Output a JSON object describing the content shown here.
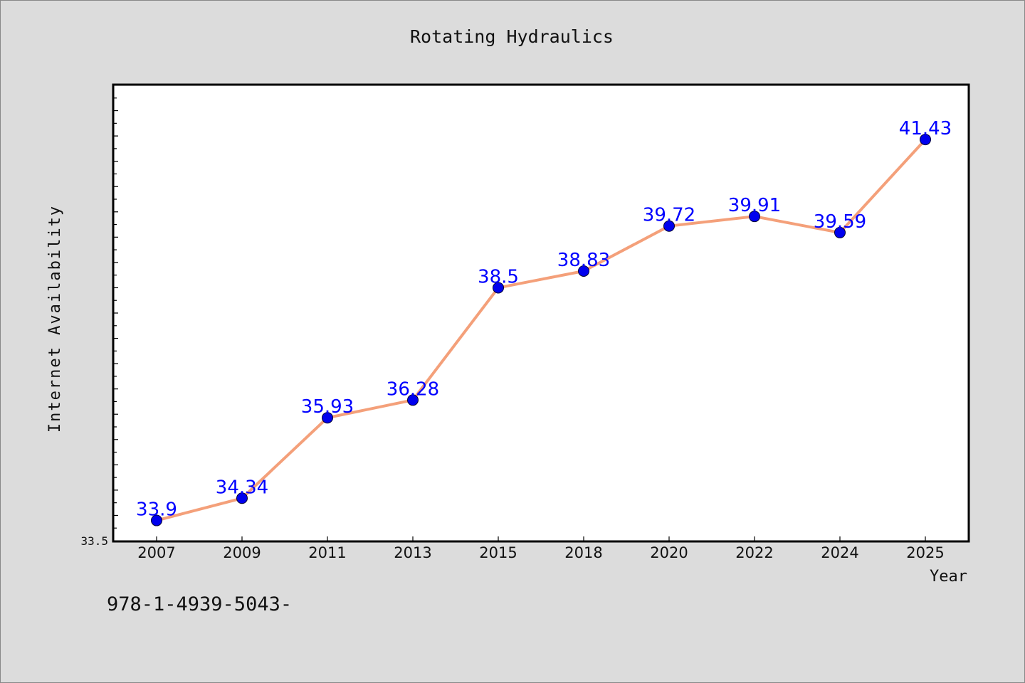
{
  "chart_data": {
    "type": "line",
    "title": "Rotating Hydraulics",
    "xlabel": "Year",
    "ylabel": "Internet Availability",
    "categories": [
      "2007",
      "2009",
      "2011",
      "2013",
      "2015",
      "2018",
      "2020",
      "2022",
      "2024",
      "2025"
    ],
    "series": [
      {
        "values": [
          33.9,
          34.34,
          35.93,
          36.28,
          38.5,
          38.83,
          39.72,
          39.91,
          39.59,
          41.43
        ]
      }
    ],
    "value_labels": [
      "33.9",
      "34.34",
      "35.93",
      "36.28",
      "38.5",
      "38.83",
      "39.72",
      "39.91",
      "39.59",
      "41.43"
    ],
    "y_tick_label": "33.5",
    "ylim": [
      33.5,
      42.5
    ],
    "grid": false,
    "colors": {
      "line": "#f4a07a",
      "marker": "#0000ee",
      "label": "#0000ff"
    }
  },
  "footnote": "978-1-4939-5043-"
}
